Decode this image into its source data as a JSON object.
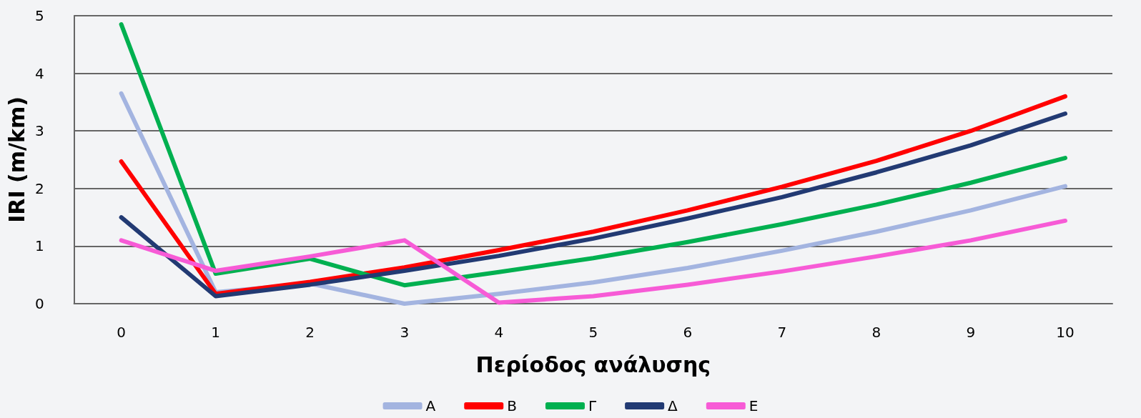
{
  "chart_data": {
    "type": "line",
    "xlabel": "Περίοδος ανάλυσης",
    "ylabel": "IRI (m/km)",
    "categories": [
      "0",
      "1",
      "2",
      "3",
      "4",
      "5",
      "6",
      "7",
      "8",
      "9",
      "10"
    ],
    "series": [
      {
        "name": "Α",
        "color": "#a3b4e0",
        "values": [
          3.65,
          0.2,
          0.35,
          0.0,
          0.17,
          0.37,
          0.62,
          0.92,
          1.25,
          1.62,
          2.04
        ]
      },
      {
        "name": "Β",
        "color": "#ff0000",
        "values": [
          2.47,
          0.17,
          0.38,
          0.63,
          0.93,
          1.25,
          1.62,
          2.03,
          2.48,
          3.0,
          3.6
        ]
      },
      {
        "name": "Γ",
        "color": "#00b050",
        "values": [
          4.85,
          0.52,
          0.78,
          0.32,
          0.55,
          0.79,
          1.07,
          1.38,
          1.72,
          2.1,
          2.53
        ]
      },
      {
        "name": "Δ",
        "color": "#223a73",
        "values": [
          1.5,
          0.13,
          0.33,
          0.57,
          0.83,
          1.13,
          1.48,
          1.85,
          2.28,
          2.75,
          3.3
        ]
      },
      {
        "name": "Ε",
        "color": "#f75bd6",
        "values": [
          1.1,
          0.57,
          0.82,
          1.1,
          0.02,
          0.13,
          0.33,
          0.56,
          0.82,
          1.1,
          1.44
        ]
      }
    ],
    "ylim": [
      0,
      5
    ],
    "yticks": [
      0,
      1,
      2,
      3,
      4,
      5
    ],
    "grid": "y",
    "legend": "bottom",
    "marker": "none",
    "line_style": "solid"
  }
}
